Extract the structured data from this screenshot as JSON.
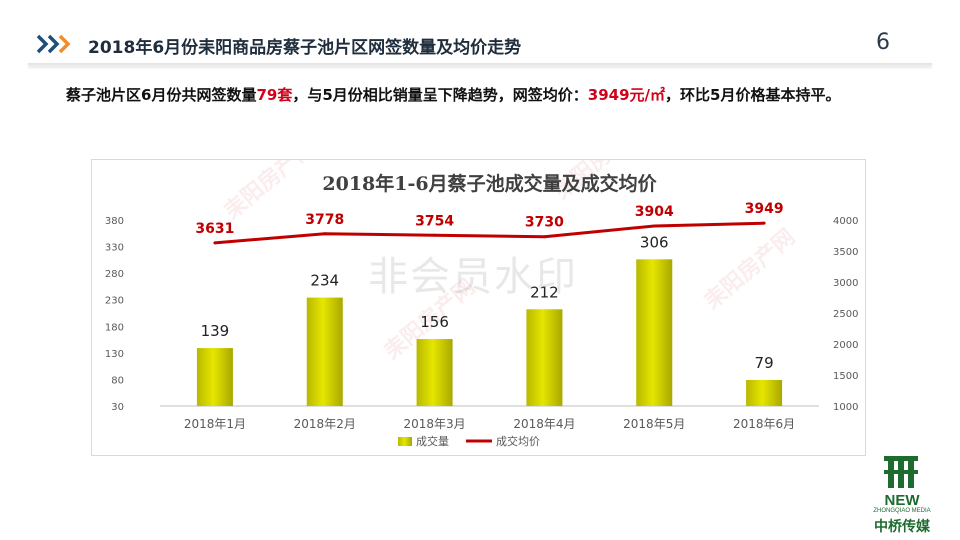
{
  "slide": {
    "title": "2018年6月份耒阳商品房蔡子池片区网签数量及均价走势",
    "page_number": "6"
  },
  "summary": {
    "text_1": "蔡子池片区6月份共网签数量",
    "highlight_1": "79套",
    "text_2": "，与5月份相比销量呈下降趋势，网签均价：",
    "highlight_2": "3949元/㎡",
    "text_3": "，环比5月价格基本持平。"
  },
  "watermark": {
    "center_text": "非会员水印",
    "brand_text": "耒阳房产网"
  },
  "logo": {
    "en": "NEW",
    "en_sub": "ZHONGQIAO MEDIA",
    "cn": "中桥传媒"
  },
  "colors": {
    "bar_fill": "#e6e600",
    "line": "#c00000",
    "line_label": "#c00000",
    "accent_chevron_1": "#1f4e79",
    "accent_chevron_2": "#f28c28"
  },
  "chart_data": {
    "type": "bar+line",
    "title": "2018年1-6月蔡子池成交量及成交均价",
    "categories": [
      "2018年1月",
      "2018年2月",
      "2018年3月",
      "2018年4月",
      "2018年5月",
      "2018年6月"
    ],
    "series": [
      {
        "name": "成交量",
        "type": "bar",
        "axis": "left",
        "values": [
          139,
          234,
          156,
          212,
          306,
          79
        ]
      },
      {
        "name": "成交均价",
        "type": "line",
        "axis": "right",
        "values": [
          3631,
          3778,
          3754,
          3730,
          3904,
          3949
        ]
      }
    ],
    "y_left": {
      "min": 30,
      "max": 380,
      "ticks": [
        30,
        80,
        130,
        180,
        230,
        280,
        330,
        380
      ]
    },
    "y_right": {
      "min": 1000,
      "max": 4000,
      "ticks": [
        1000,
        1500,
        2000,
        2500,
        3000,
        3500,
        4000
      ]
    },
    "legend_position": "bottom",
    "grid": false
  }
}
